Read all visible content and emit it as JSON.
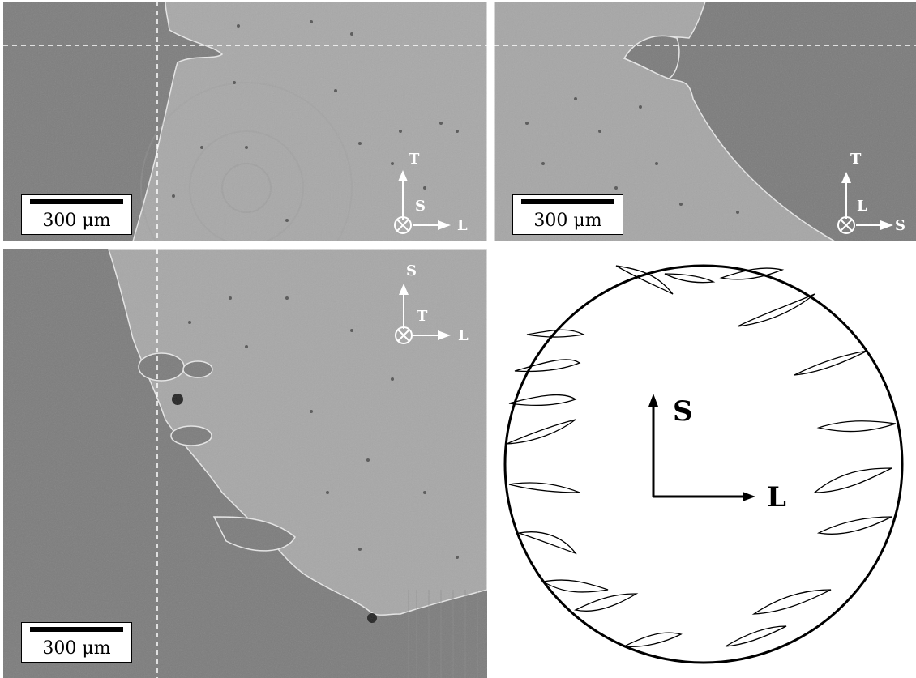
{
  "panels": {
    "top_left": {
      "scale_label": "300 μm",
      "axis_labels": {
        "up": "T",
        "into": "S",
        "right": "L"
      }
    },
    "top_right": {
      "scale_label": "300 μm",
      "axis_labels": {
        "up": "T",
        "into": "L",
        "right": "S"
      }
    },
    "bottom_left": {
      "scale_label": "300 μm",
      "axis_labels": {
        "up": "S",
        "into": "T",
        "right": "L"
      }
    },
    "schematic": {
      "axis_labels": {
        "up": "S",
        "right": "L"
      }
    }
  },
  "colors": {
    "background_gray": "#7c7c7c",
    "material_gray": "#a9a9a9",
    "annotation": "#ffffff",
    "ink": "#000000"
  }
}
